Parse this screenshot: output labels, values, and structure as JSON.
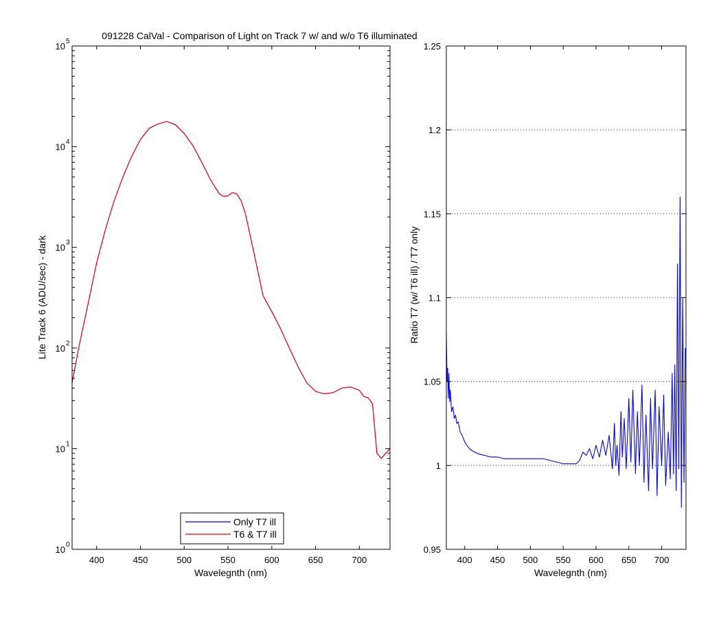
{
  "figure": {
    "title": "091228 CalVal - Comparison of Light on Track 7 w/ and w/o T6 illuminated"
  },
  "chart_data": [
    {
      "type": "line",
      "xlabel": "Wavelegnth (nm)",
      "ylabel": "Lite Track 6 (ADU/sec) - dark",
      "xlim": [
        372,
        735
      ],
      "ylim": [
        1,
        100000
      ],
      "yscale": "log",
      "xticks": [
        400,
        450,
        500,
        550,
        600,
        650,
        700
      ],
      "yticks": [
        {
          "base": "10",
          "exp": "0",
          "value": 1
        },
        {
          "base": "10",
          "exp": "1",
          "value": 10
        },
        {
          "base": "10",
          "exp": "2",
          "value": 100
        },
        {
          "base": "10",
          "exp": "3",
          "value": 1000
        },
        {
          "base": "10",
          "exp": "4",
          "value": 10000
        },
        {
          "base": "10",
          "exp": "5",
          "value": 100000
        }
      ],
      "grid": false,
      "legend_position": "bottom-center",
      "series": [
        {
          "name": "Only T7 ill",
          "color": "#0000ff",
          "x": [
            372,
            380,
            390,
            400,
            410,
            420,
            430,
            440,
            450,
            460,
            470,
            480,
            490,
            500,
            510,
            520,
            530,
            540,
            545,
            550,
            555,
            560,
            565,
            570,
            580,
            590,
            600,
            610,
            620,
            630,
            640,
            650,
            660,
            670,
            680,
            690,
            700,
            705,
            710,
            715,
            720,
            725,
            730,
            735
          ],
          "y": [
            45,
            105,
            270,
            700,
            1500,
            2900,
            5000,
            8000,
            11800,
            15200,
            16800,
            17800,
            16500,
            13500,
            10200,
            7000,
            4700,
            3400,
            3200,
            3250,
            3500,
            3400,
            2900,
            2150,
            850,
            330,
            230,
            155,
            100,
            65,
            45,
            37,
            35,
            36,
            40,
            41,
            38,
            33,
            32,
            28,
            9,
            8,
            9,
            10
          ]
        },
        {
          "name": "T6 & T7 ill",
          "color": "#ff0000",
          "x": [
            372,
            380,
            390,
            400,
            410,
            420,
            430,
            440,
            450,
            460,
            470,
            480,
            490,
            500,
            510,
            520,
            530,
            540,
            545,
            550,
            555,
            560,
            565,
            570,
            580,
            590,
            600,
            610,
            620,
            630,
            640,
            650,
            660,
            670,
            680,
            690,
            700,
            705,
            710,
            715,
            720,
            725,
            730,
            735
          ],
          "y": [
            45,
            105,
            270,
            700,
            1500,
            2900,
            5000,
            8000,
            11800,
            15200,
            16800,
            17800,
            16500,
            13500,
            10200,
            7000,
            4700,
            3400,
            3200,
            3250,
            3500,
            3400,
            2900,
            2150,
            850,
            330,
            230,
            155,
            100,
            65,
            45,
            37,
            35,
            36,
            40,
            41,
            38,
            33,
            32,
            28,
            9,
            8,
            9,
            10
          ]
        }
      ]
    },
    {
      "type": "line",
      "xlabel": "Wavelegnth (nm)",
      "ylabel": "Ratio T7 (w/ T6 ill) / T7 only",
      "xlim": [
        372,
        737
      ],
      "ylim": [
        0.95,
        1.25
      ],
      "xticks": [
        400,
        450,
        500,
        550,
        600,
        650,
        700
      ],
      "yticks": [
        {
          "label": "0.95",
          "value": 0.95
        },
        {
          "label": "1",
          "value": 1.0
        },
        {
          "label": "1.05",
          "value": 1.05
        },
        {
          "label": "1.1",
          "value": 1.1
        },
        {
          "label": "1.15",
          "value": 1.15
        },
        {
          "label": "1.2",
          "value": 1.2
        },
        {
          "label": "1.25",
          "value": 1.25
        }
      ],
      "grid": true,
      "series": [
        {
          "color": "#0000ff",
          "x": [
            372,
            373,
            374,
            375,
            376,
            377,
            378,
            380,
            382,
            384,
            386,
            388,
            390,
            393,
            396,
            400,
            405,
            410,
            415,
            420,
            430,
            440,
            450,
            460,
            470,
            480,
            490,
            500,
            510,
            520,
            530,
            540,
            550,
            560,
            570,
            575,
            580,
            585,
            590,
            595,
            600,
            605,
            610,
            615,
            620,
            625,
            628,
            630,
            632,
            635,
            638,
            640,
            643,
            646,
            650,
            653,
            656,
            660,
            663,
            666,
            670,
            673,
            676,
            680,
            683,
            686,
            690,
            693,
            696,
            700,
            703,
            706,
            710,
            713,
            716,
            718,
            720,
            722,
            724,
            726,
            728,
            730,
            732,
            734,
            736
          ],
          "y": [
            1.08,
            1.05,
            1.058,
            1.04,
            1.055,
            1.038,
            1.045,
            1.032,
            1.035,
            1.028,
            1.03,
            1.025,
            1.026,
            1.02,
            1.018,
            1.014,
            1.011,
            1.009,
            1.008,
            1.007,
            1.006,
            1.005,
            1.005,
            1.004,
            1.004,
            1.004,
            1.004,
            1.004,
            1.004,
            1.004,
            1.003,
            1.002,
            1.001,
            1.001,
            1.001,
            1.003,
            1.008,
            1.006,
            1.01,
            1.004,
            1.012,
            1.005,
            1.015,
            1.006,
            1.018,
            0.998,
            1.025,
            1.0,
            1.012,
            0.994,
            1.032,
            1.005,
            1.028,
            0.998,
            1.04,
            1.002,
            1.045,
            0.995,
            1.032,
            1.0,
            1.048,
            0.99,
            1.03,
            0.985,
            1.04,
            0.998,
            1.045,
            0.982,
            1.035,
            1.0,
            1.042,
            0.988,
            1.02,
            0.992,
            1.055,
            0.995,
            1.06,
            0.985,
            1.12,
            0.998,
            1.16,
            0.975,
            1.1,
            0.99,
            1.07
          ]
        }
      ]
    }
  ]
}
